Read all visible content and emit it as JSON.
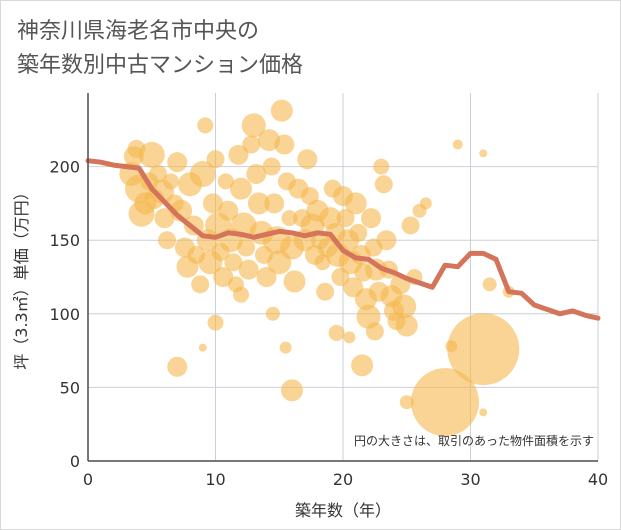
{
  "title_line1": "神奈川県海老名市中央の",
  "title_line2": "築年数別中古マンション価格",
  "chart_data": {
    "type": "scatter",
    "xlabel": "築年数（年）",
    "ylabel": "坪（3.3㎡）単価（万円）",
    "xlim": [
      0,
      40
    ],
    "ylim": [
      0,
      250
    ],
    "xticks": [
      0,
      10,
      20,
      30,
      40
    ],
    "yticks": [
      0,
      50,
      100,
      150,
      200
    ],
    "grid": true,
    "note": "円の大きさは、取引のあった物件面積を示す",
    "colors": {
      "bubble": "#f5b84f",
      "line": "#d4745a",
      "grid": "#c9d0d6",
      "axis": "#4b4b4b"
    },
    "bubbles": [
      [
        3.4,
        195,
        12
      ],
      [
        3.6,
        207,
        10
      ],
      [
        3.8,
        212,
        9
      ],
      [
        4.0,
        185,
        14
      ],
      [
        4.2,
        168,
        13
      ],
      [
        4.5,
        175,
        11
      ],
      [
        4.8,
        190,
        9
      ],
      [
        5.0,
        208,
        13
      ],
      [
        5.2,
        178,
        10
      ],
      [
        5.5,
        195,
        9
      ],
      [
        5.8,
        183,
        12
      ],
      [
        6.0,
        165,
        10
      ],
      [
        6.2,
        150,
        9
      ],
      [
        6.5,
        190,
        8
      ],
      [
        6.8,
        175,
        9
      ],
      [
        7.0,
        203,
        10
      ],
      [
        7.3,
        170,
        11
      ],
      [
        7.6,
        145,
        10
      ],
      [
        7.8,
        132,
        11
      ],
      [
        8.0,
        188,
        12
      ],
      [
        8.3,
        160,
        10
      ],
      [
        8.5,
        140,
        9
      ],
      [
        8.8,
        120,
        9
      ],
      [
        9.0,
        195,
        13
      ],
      [
        9.2,
        228,
        8
      ],
      [
        9.4,
        150,
        11
      ],
      [
        9.6,
        135,
        12
      ],
      [
        9.8,
        175,
        10
      ],
      [
        10.0,
        205,
        9
      ],
      [
        10.2,
        160,
        13
      ],
      [
        10.4,
        142,
        9
      ],
      [
        10.6,
        125,
        10
      ],
      [
        10.8,
        190,
        8
      ],
      [
        11.0,
        170,
        10
      ],
      [
        11.2,
        150,
        12
      ],
      [
        11.4,
        135,
        9
      ],
      [
        11.6,
        120,
        8
      ],
      [
        11.8,
        208,
        10
      ],
      [
        12.0,
        185,
        11
      ],
      [
        12.2,
        160,
        13
      ],
      [
        12.4,
        145,
        9
      ],
      [
        12.6,
        130,
        10
      ],
      [
        12.8,
        215,
        9
      ],
      [
        13.0,
        228,
        12
      ],
      [
        13.2,
        195,
        10
      ],
      [
        13.4,
        175,
        11
      ],
      [
        13.6,
        155,
        12
      ],
      [
        13.8,
        140,
        9
      ],
      [
        14.0,
        125,
        10
      ],
      [
        14.2,
        218,
        11
      ],
      [
        14.4,
        200,
        9
      ],
      [
        14.6,
        175,
        10
      ],
      [
        14.8,
        150,
        14
      ],
      [
        15.0,
        135,
        12
      ],
      [
        15.2,
        238,
        11
      ],
      [
        15.4,
        215,
        10
      ],
      [
        15.6,
        190,
        9
      ],
      [
        15.8,
        165,
        8
      ],
      [
        16.0,
        145,
        12
      ],
      [
        16.2,
        122,
        11
      ],
      [
        16.5,
        185,
        10
      ],
      [
        16.8,
        165,
        9
      ],
      [
        17.0,
        150,
        11
      ],
      [
        17.2,
        205,
        10
      ],
      [
        17.4,
        180,
        9
      ],
      [
        17.6,
        160,
        12
      ],
      [
        17.8,
        140,
        10
      ],
      [
        18.0,
        170,
        11
      ],
      [
        18.2,
        150,
        9
      ],
      [
        18.4,
        135,
        8
      ],
      [
        18.6,
        115,
        9
      ],
      [
        18.8,
        145,
        10
      ],
      [
        19.0,
        165,
        11
      ],
      [
        19.2,
        185,
        9
      ],
      [
        19.4,
        155,
        10
      ],
      [
        19.6,
        140,
        12
      ],
      [
        19.8,
        125,
        9
      ],
      [
        20.0,
        180,
        10
      ],
      [
        20.2,
        165,
        9
      ],
      [
        20.4,
        150,
        11
      ],
      [
        20.6,
        135,
        12
      ],
      [
        20.8,
        118,
        10
      ],
      [
        21.0,
        175,
        11
      ],
      [
        21.2,
        155,
        9
      ],
      [
        21.4,
        140,
        10
      ],
      [
        21.6,
        128,
        9
      ],
      [
        21.8,
        110,
        11
      ],
      [
        22.0,
        98,
        12
      ],
      [
        22.2,
        165,
        10
      ],
      [
        22.4,
        145,
        9
      ],
      [
        22.6,
        130,
        11
      ],
      [
        22.8,
        115,
        10
      ],
      [
        23.0,
        200,
        8
      ],
      [
        23.2,
        188,
        9
      ],
      [
        23.4,
        150,
        10
      ],
      [
        23.6,
        130,
        9
      ],
      [
        23.8,
        112,
        11
      ],
      [
        24.0,
        102,
        10
      ],
      [
        24.2,
        95,
        9
      ],
      [
        24.5,
        120,
        10
      ],
      [
        24.8,
        105,
        12
      ],
      [
        25.0,
        92,
        11
      ],
      [
        25.3,
        160,
        9
      ],
      [
        25.6,
        125,
        8
      ],
      [
        26.0,
        170,
        7
      ],
      [
        16.0,
        48,
        11
      ],
      [
        7.0,
        64,
        10
      ],
      [
        10.0,
        94,
        8
      ],
      [
        12.0,
        113,
        8
      ],
      [
        14.5,
        100,
        7
      ],
      [
        15.5,
        77,
        6
      ],
      [
        21.5,
        65,
        11
      ],
      [
        22.5,
        88,
        9
      ],
      [
        19.5,
        87,
        8
      ],
      [
        25.0,
        40,
        7
      ],
      [
        28.5,
        78,
        6
      ],
      [
        29.0,
        215,
        5
      ],
      [
        31.0,
        209,
        4
      ],
      [
        31.5,
        120,
        7
      ],
      [
        33.0,
        115,
        6
      ],
      [
        31.0,
        33,
        4
      ],
      [
        26.5,
        175,
        6
      ],
      [
        9.0,
        77,
        4
      ],
      [
        20.5,
        84,
        6
      ],
      [
        28.0,
        40,
        34
      ],
      [
        31.0,
        76,
        36
      ]
    ],
    "line": [
      [
        0,
        204
      ],
      [
        1,
        203
      ],
      [
        2,
        201
      ],
      [
        3,
        200
      ],
      [
        4,
        199
      ],
      [
        5,
        185
      ],
      [
        6,
        176
      ],
      [
        7,
        167
      ],
      [
        8,
        160
      ],
      [
        9,
        153
      ],
      [
        10,
        152
      ],
      [
        11,
        155
      ],
      [
        12,
        154
      ],
      [
        13,
        152
      ],
      [
        14,
        154
      ],
      [
        15,
        156
      ],
      [
        16,
        155
      ],
      [
        17,
        153
      ],
      [
        18,
        155
      ],
      [
        19,
        154
      ],
      [
        20,
        143
      ],
      [
        21,
        138
      ],
      [
        22,
        137
      ],
      [
        23,
        131
      ],
      [
        24,
        128
      ],
      [
        25,
        124
      ],
      [
        26,
        121
      ],
      [
        27,
        118
      ],
      [
        28,
        133
      ],
      [
        29,
        132
      ],
      [
        30,
        141
      ],
      [
        31,
        141
      ],
      [
        32,
        137
      ],
      [
        33,
        115
      ],
      [
        34,
        114
      ],
      [
        35,
        106
      ],
      [
        36,
        103
      ],
      [
        37,
        100
      ],
      [
        38,
        102
      ],
      [
        39,
        99
      ],
      [
        40,
        97
      ]
    ]
  }
}
